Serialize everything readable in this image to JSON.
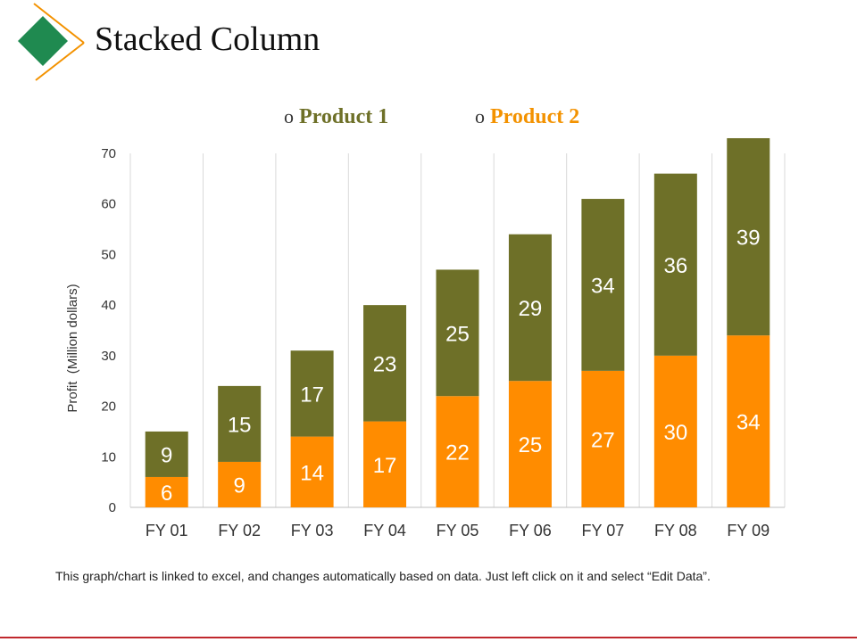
{
  "slide": {
    "title": "Stacked Column",
    "footnote": "This graph/chart is linked to excel, and changes automatically based on data. Just left click on it and select “Edit Data”."
  },
  "legend": {
    "marker": "o",
    "items": [
      {
        "label": "Product 1",
        "color": "#6e7028"
      },
      {
        "label": "Product 2",
        "color": "#f39200"
      }
    ]
  },
  "colors": {
    "product1": "#6e7028",
    "product2": "#ff8c00",
    "accent_green": "#1f8a50",
    "accent_orange": "#f39200",
    "rule": "#c0282d"
  },
  "chart_data": {
    "type": "bar",
    "stacked": true,
    "title": "",
    "xlabel": "",
    "ylabel": "Profit  (Million dollars)",
    "categories": [
      "FY 01",
      "FY 02",
      "FY 03",
      "FY 04",
      "FY 05",
      "FY 06",
      "FY 07",
      "FY 08",
      "FY 09"
    ],
    "series": [
      {
        "name": "Product 2",
        "values": [
          6,
          9,
          14,
          17,
          22,
          25,
          27,
          30,
          34
        ]
      },
      {
        "name": "Product 1",
        "values": [
          9,
          15,
          17,
          23,
          25,
          29,
          34,
          36,
          39
        ]
      }
    ],
    "ylim": [
      0,
      70
    ],
    "yticks": [
      0,
      10,
      20,
      30,
      40,
      50,
      60,
      70
    ],
    "grid": "vertical",
    "legend_position": "top"
  }
}
